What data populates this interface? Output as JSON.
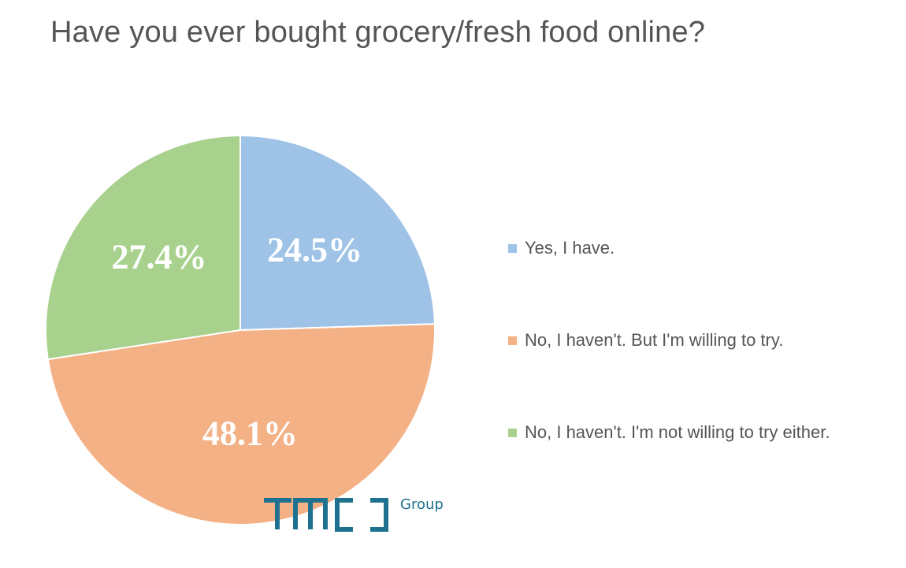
{
  "chart_data": {
    "type": "pie",
    "title": "Have you ever bought grocery/fresh food online?",
    "slices": [
      {
        "label": "Yes, I have.",
        "value": 24.5,
        "display": "24.5%",
        "color": "#9fc3e7"
      },
      {
        "label": "No, I haven't. But I'm willing to try.",
        "value": 48.1,
        "display": "48.1%",
        "color": "#f3b185"
      },
      {
        "label": "No, I haven't. I'm not willing to try either.",
        "value": 27.4,
        "display": "27.4%",
        "color": "#a9d18e"
      }
    ],
    "start_angle_deg": 0,
    "direction": "clockwise",
    "legend_position": "right"
  },
  "logo": {
    "text": "TMO Group",
    "color": "#1f7190"
  }
}
